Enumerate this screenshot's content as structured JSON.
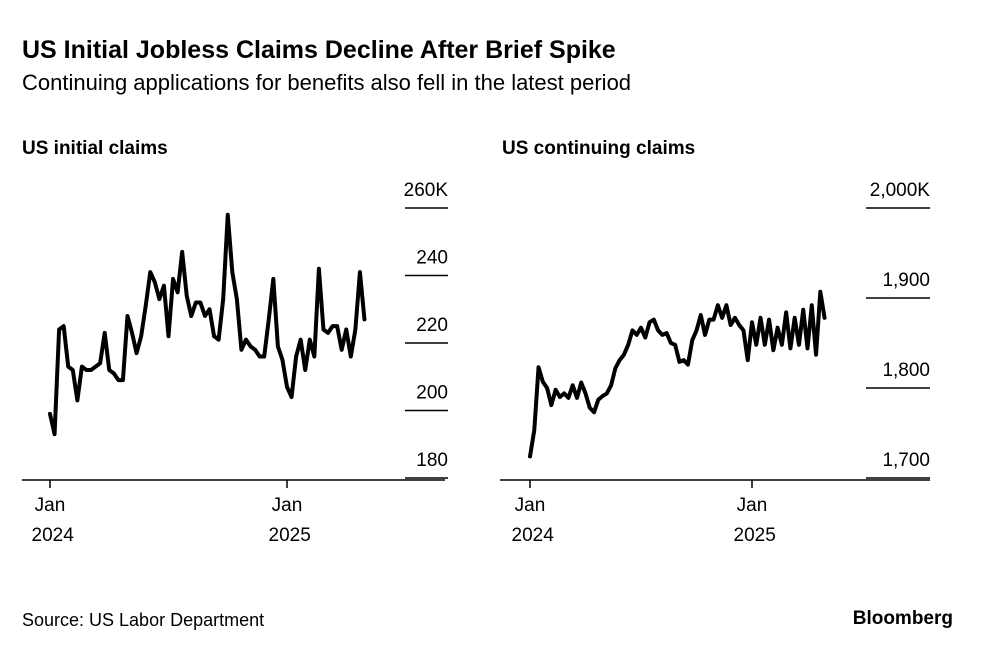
{
  "header": {
    "title": "US Initial Jobless Claims Decline After Brief Spike",
    "subtitle": "Continuing applications for benefits also fell in the latest period"
  },
  "source": "Source: US Labor Department",
  "brand": "Bloomberg",
  "chart_data": [
    {
      "type": "line",
      "title": "US initial claims",
      "color": "#000000",
      "categories": [
        "Jan 2024",
        null,
        null,
        null,
        null,
        null,
        null,
        null,
        null,
        null,
        null,
        null,
        null,
        null,
        null,
        null,
        null,
        null,
        null,
        null,
        null,
        null,
        null,
        null,
        null,
        null,
        null,
        null,
        null,
        null,
        null,
        null,
        null,
        null,
        null,
        null,
        null,
        null,
        null,
        null,
        null,
        null,
        null,
        null,
        null,
        null,
        null,
        null,
        null,
        null,
        null,
        null,
        "Jan 2025",
        null,
        null,
        null,
        null,
        null,
        null,
        null,
        null,
        null,
        null,
        null,
        null,
        null,
        null,
        null,
        null,
        null
      ],
      "values": [
        199,
        193,
        224,
        225,
        213,
        212,
        203,
        213,
        212,
        212,
        213,
        214,
        223,
        212,
        211,
        209,
        209,
        228,
        223,
        217,
        222,
        231,
        241,
        238,
        233,
        237,
        222,
        239,
        235,
        247,
        234,
        228,
        232,
        232,
        228,
        230,
        222,
        221,
        233,
        258,
        241,
        233,
        218,
        221,
        219,
        218,
        216,
        216,
        227,
        239,
        219,
        215,
        207,
        204,
        216,
        221,
        212,
        221,
        216,
        242,
        224,
        223,
        225,
        225,
        218,
        224,
        216,
        224,
        241,
        227
      ],
      "ylim": [
        180,
        260
      ],
      "yticks": [
        {
          "value": 260,
          "label": "260K"
        },
        240,
        220,
        200,
        180
      ]
    },
    {
      "type": "line",
      "title": "US continuing claims",
      "color": "#000000",
      "categories": [
        "Jan 2024",
        null,
        null,
        null,
        null,
        null,
        null,
        null,
        null,
        null,
        null,
        null,
        null,
        null,
        null,
        null,
        null,
        null,
        null,
        null,
        null,
        null,
        null,
        null,
        null,
        null,
        null,
        null,
        null,
        null,
        null,
        null,
        null,
        null,
        null,
        null,
        null,
        null,
        null,
        null,
        null,
        null,
        null,
        null,
        null,
        null,
        null,
        null,
        null,
        null,
        null,
        null,
        "Jan 2025",
        null,
        null,
        null,
        null,
        null,
        null,
        null,
        null,
        null,
        null,
        null,
        null,
        null,
        null,
        null,
        null,
        null
      ],
      "values": [
        1724,
        1753,
        1823,
        1807,
        1800,
        1781,
        1798,
        1790,
        1794,
        1789,
        1803,
        1789,
        1806,
        1794,
        1778,
        1773,
        1787,
        1791,
        1794,
        1803,
        1822,
        1831,
        1837,
        1848,
        1864,
        1859,
        1867,
        1856,
        1873,
        1876,
        1864,
        1859,
        1861,
        1850,
        1848,
        1829,
        1831,
        1826,
        1853,
        1864,
        1881,
        1859,
        1876,
        1876,
        1892,
        1878,
        1892,
        1870,
        1878,
        1870,
        1864,
        1831,
        1873,
        1848,
        1878,
        1848,
        1876,
        1842,
        1867,
        1848,
        1884,
        1844,
        1878,
        1848,
        1887,
        1844,
        1892,
        1837,
        1907,
        1878
      ],
      "ylim": [
        1700,
        2000
      ],
      "yticks": [
        {
          "value": 2000,
          "label": "2,000K"
        },
        {
          "value": 1900,
          "label": "1,900"
        },
        {
          "value": 1800,
          "label": "1,800"
        },
        {
          "value": 1700,
          "label": "1,700"
        }
      ]
    }
  ]
}
